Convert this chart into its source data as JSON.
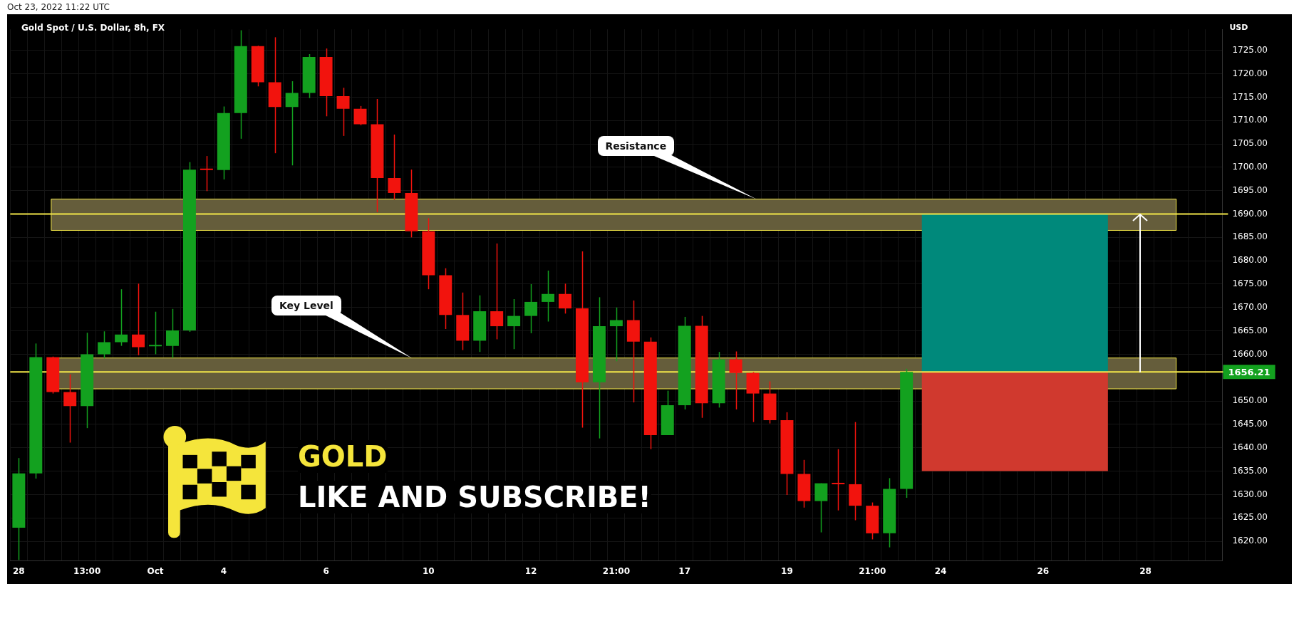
{
  "chart_data": {
    "type": "candlestick",
    "title": "Gold Spot / U.S. Dollar, 8h, FX",
    "ylabel": "USD",
    "categories": [
      "28",
      null,
      null,
      null,
      "13:00",
      null,
      null,
      null,
      "Oct",
      null,
      null,
      null,
      "4",
      null,
      null,
      null,
      null,
      null,
      "6",
      null,
      null,
      null,
      null,
      null,
      "10",
      null,
      null,
      null,
      null,
      null,
      "12",
      null,
      null,
      null,
      null,
      "21:00",
      null,
      null,
      null,
      "17",
      null,
      null,
      null,
      null,
      null,
      "19",
      null,
      null,
      null,
      null,
      "21:00",
      null,
      null,
      null,
      "24",
      null,
      null,
      null,
      null,
      null,
      "26",
      null,
      null,
      null,
      null,
      null,
      "28",
      null,
      null,
      null,
      null
    ],
    "ohlc": [
      [
        1622.9,
        1637.8,
        1616.0,
        1634.5
      ],
      [
        1634.5,
        1662.3,
        1633.4,
        1659.4
      ],
      [
        1659.4,
        1659.5,
        1651.6,
        1651.9
      ],
      [
        1651.9,
        1655.7,
        1641.1,
        1648.9
      ],
      [
        1648.9,
        1664.6,
        1644.2,
        1660.0
      ],
      [
        1660.0,
        1664.9,
        1659.1,
        1662.6
      ],
      [
        1662.6,
        1673.9,
        1661.8,
        1664.2
      ],
      [
        1664.2,
        1675.1,
        1659.8,
        1661.5
      ],
      [
        1661.7,
        1669.1,
        1660.0,
        1662.0
      ],
      [
        1661.8,
        1669.7,
        1659.2,
        1665.1
      ],
      [
        1665.1,
        1701.1,
        1664.8,
        1699.5
      ],
      [
        1699.5,
        1702.4,
        1694.9,
        1699.4
      ],
      [
        1699.4,
        1713.0,
        1697.4,
        1711.6
      ],
      [
        1711.6,
        1729.3,
        1706.1,
        1725.9
      ],
      [
        1725.9,
        1726.0,
        1717.3,
        1718.2
      ],
      [
        1718.2,
        1727.8,
        1703.0,
        1712.9
      ],
      [
        1712.9,
        1718.4,
        1700.4,
        1715.9
      ],
      [
        1715.9,
        1724.2,
        1714.8,
        1723.6
      ],
      [
        1723.6,
        1725.4,
        1710.9,
        1715.2
      ],
      [
        1715.2,
        1717.0,
        1706.7,
        1712.5
      ],
      [
        1712.5,
        1713.1,
        1709.0,
        1709.2
      ],
      [
        1709.2,
        1714.6,
        1690.4,
        1697.7
      ],
      [
        1697.7,
        1707.0,
        1693.1,
        1694.5
      ],
      [
        1694.5,
        1699.5,
        1685.0,
        1686.3
      ],
      [
        1686.3,
        1689.1,
        1673.9,
        1676.9
      ],
      [
        1676.9,
        1678.4,
        1665.4,
        1668.4
      ],
      [
        1668.4,
        1673.2,
        1660.9,
        1662.9
      ],
      [
        1662.9,
        1672.6,
        1660.5,
        1669.2
      ],
      [
        1669.2,
        1683.7,
        1663.2,
        1666.0
      ],
      [
        1666.0,
        1671.8,
        1661.1,
        1668.2
      ],
      [
        1668.2,
        1675.0,
        1664.5,
        1671.2
      ],
      [
        1671.2,
        1677.9,
        1667.0,
        1672.9
      ],
      [
        1672.9,
        1675.1,
        1668.7,
        1669.8
      ],
      [
        1669.8,
        1682.0,
        1644.3,
        1654.0
      ],
      [
        1654.0,
        1672.2,
        1642.0,
        1666.0
      ],
      [
        1666.0,
        1670.0,
        1658.5,
        1667.3
      ],
      [
        1667.3,
        1671.5,
        1649.7,
        1662.7
      ],
      [
        1662.7,
        1663.6,
        1639.7,
        1642.7
      ],
      [
        1642.7,
        1652.2,
        1642.7,
        1649.1
      ],
      [
        1649.1,
        1668.0,
        1648.2,
        1666.1
      ],
      [
        1666.1,
        1668.2,
        1646.4,
        1649.5
      ],
      [
        1649.5,
        1660.5,
        1648.6,
        1658.9
      ],
      [
        1658.9,
        1660.6,
        1648.2,
        1656.0
      ],
      [
        1656.0,
        1656.2,
        1645.5,
        1651.6
      ],
      [
        1651.6,
        1654.2,
        1645.2,
        1645.9
      ],
      [
        1645.9,
        1647.6,
        1629.9,
        1634.4
      ],
      [
        1634.4,
        1637.4,
        1627.2,
        1628.6
      ],
      [
        1628.6,
        1632.4,
        1621.9,
        1632.4
      ],
      [
        1632.4,
        1639.7,
        1626.6,
        1632.2
      ],
      [
        1632.2,
        1645.5,
        1624.5,
        1627.6
      ],
      [
        1627.6,
        1628.3,
        1620.4,
        1621.7
      ],
      [
        1621.7,
        1633.5,
        1618.7,
        1631.2
      ],
      [
        1631.2,
        1656.9,
        1629.3,
        1656.21
      ],
      null,
      null,
      null,
      null,
      null,
      null,
      null,
      null,
      null,
      null,
      null,
      null,
      null,
      null,
      null,
      null,
      null,
      null
    ],
    "colors": [
      "#13a11f",
      "#13a11f",
      "#f2130d",
      "#f2130d",
      "#13a11f",
      "#13a11f",
      "#13a11f",
      "#f2130d",
      "#13a11f",
      "#13a11f",
      "#13a11f",
      "#f2130d",
      "#13a11f",
      "#13a11f",
      "#f2130d",
      "#f2130d",
      "#13a11f",
      "#13a11f",
      "#f2130d",
      "#f2130d",
      "#f2130d",
      "#f2130d",
      "#f2130d",
      "#f2130d",
      "#f2130d",
      "#f2130d",
      "#f2130d",
      "#13a11f",
      "#f2130d",
      "#13a11f",
      "#13a11f",
      "#13a11f",
      "#f2130d",
      "#f2130d",
      "#13a11f",
      "#13a11f",
      "#f2130d",
      "#f2130d",
      "#13a11f",
      "#13a11f",
      "#f2130d",
      "#13a11f",
      "#f2130d",
      "#f2130d",
      "#f2130d",
      "#f2130d",
      "#f2130d",
      "#13a11f",
      "#f2130d",
      "#f2130d",
      "#f2130d",
      "#13a11f",
      "#13a11f",
      null,
      null,
      null,
      null,
      null,
      null,
      null,
      null,
      null,
      null,
      null,
      null,
      null,
      null,
      null,
      null,
      null,
      null
    ],
    "ylim": [
      1615.8,
      1729.5
    ],
    "yticks": [
      {
        "value": 1620,
        "label": "1620.00"
      },
      {
        "value": 1625,
        "label": "1625.00"
      },
      {
        "value": 1630,
        "label": "1630.00"
      },
      {
        "value": 1635,
        "label": "1635.00"
      },
      {
        "value": 1640,
        "label": "1640.00"
      },
      {
        "value": 1645,
        "label": "1645.00"
      },
      {
        "value": 1650,
        "label": "1650.00"
      },
      {
        "value": 1660,
        "label": "1660.00"
      },
      {
        "value": 1665,
        "label": "1665.00"
      },
      {
        "value": 1670,
        "label": "1670.00"
      },
      {
        "value": 1675,
        "label": "1675.00"
      },
      {
        "value": 1680,
        "label": "1680.00"
      },
      {
        "value": 1685,
        "label": "1685.00"
      },
      {
        "value": 1690,
        "label": "1690.00"
      },
      {
        "value": 1695,
        "label": "1695.00"
      },
      {
        "value": 1700,
        "label": "1700.00"
      },
      {
        "value": 1705,
        "label": "1705.00"
      },
      {
        "value": 1710,
        "label": "1710.00"
      },
      {
        "value": 1715,
        "label": "1715.00"
      },
      {
        "value": 1720,
        "label": "1720.00"
      },
      {
        "value": 1725,
        "label": "1725.00"
      }
    ],
    "grid": true,
    "legend": false,
    "bands": [
      {
        "axis": "y",
        "from": 1686.5,
        "to": 1693.2,
        "color": "#655d3b"
      },
      {
        "axis": "y",
        "from": 1652.6,
        "to": 1659.2,
        "color": "#655d3b"
      },
      {
        "axis": "y",
        "from": 1656.21,
        "to": 1690,
        "color": "#00897b"
      },
      {
        "axis": "y",
        "from": 1635,
        "to": 1656.21,
        "color": "#d0392e"
      }
    ],
    "ref_lines": [
      {
        "axis": "y",
        "value": 1690,
        "color": "#f5e94a"
      },
      {
        "axis": "y",
        "value": 1656.21,
        "label": "1656.21",
        "color": "#f5e94a"
      }
    ],
    "annotations": [
      "Resistance",
      "Key Level",
      "GOLD",
      "LIKE AND SUBSCRIBE!",
      "Oct 23, 2022 11:22 UTC"
    ]
  }
}
